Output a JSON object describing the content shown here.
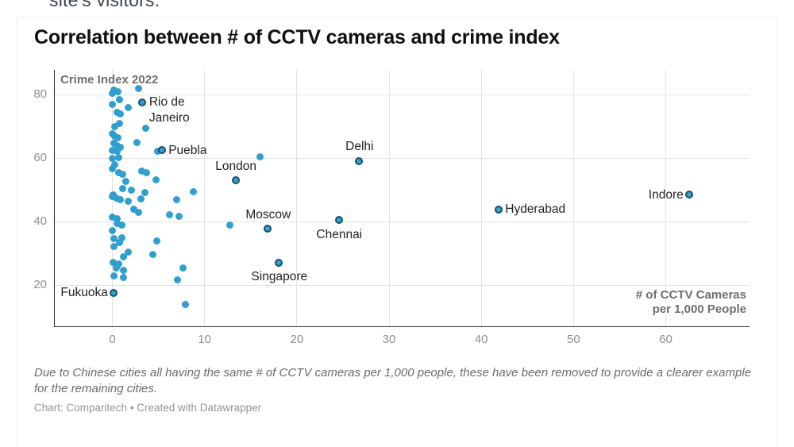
{
  "page": {
    "top_partial_text": "site's visitors."
  },
  "chart": {
    "title": "Correlation between # of CCTV cameras and crime index",
    "y_axis_title": "Crime Index 2022",
    "x_axis_title_line1": "# of CCTV Cameras",
    "x_axis_title_line2": "per 1,000 People",
    "footnote": "Due to Chinese cities all having the same # of CCTV cameras per 1,000 people, these have been removed to provide a clearer example for the remaining cities.",
    "credit": "Chart: Comparitech • Created with Datawrapper"
  },
  "chart_data": {
    "type": "scatter",
    "title": "Correlation between # of CCTV cameras and crime index",
    "xlabel": "# of CCTV Cameras per 1,000 People",
    "ylabel": "Crime Index 2022",
    "xlim": [
      -6,
      69
    ],
    "ylim": [
      7,
      88
    ],
    "x_ticks": [
      0,
      10,
      20,
      30,
      40,
      50,
      60
    ],
    "y_ticks": [
      20,
      40,
      60,
      80
    ],
    "grid": true,
    "colors": {
      "dot_fill": "#2f9fd0",
      "labeled_dot_fill": "#35a2cf",
      "labeled_dot_stroke": "#14506a",
      "gridline": "#e2e2e2",
      "axis_line": "#2e2e2e",
      "tick_label": "#8e8e8e",
      "axis_title": "#6e6e6e",
      "city_label": "#222222"
    },
    "labeled_points": [
      {
        "name": "Rio de Janeiro",
        "label": "Rio de\nJaneiro",
        "x": 3.3,
        "y": 77.5,
        "pos": "right"
      },
      {
        "name": "Puebla",
        "label": "Puebla",
        "x": 5.4,
        "y": 62.3,
        "pos": "right"
      },
      {
        "name": "London",
        "label": "London",
        "x": 13.4,
        "y": 52.8,
        "pos": "above"
      },
      {
        "name": "Delhi",
        "label": "Delhi",
        "x": 26.8,
        "y": 58.9,
        "pos": "above"
      },
      {
        "name": "Moscow",
        "label": "Moscow",
        "x": 16.9,
        "y": 37.6,
        "pos": "above"
      },
      {
        "name": "Chennai",
        "label": "Chennai",
        "x": 24.6,
        "y": 40.3,
        "pos": "below"
      },
      {
        "name": "Singapore",
        "label": "Singapore",
        "x": 18.1,
        "y": 27.0,
        "pos": "below"
      },
      {
        "name": "Hyderabad",
        "label": "Hyderabad",
        "x": 41.9,
        "y": 43.7,
        "pos": "right"
      },
      {
        "name": "Indore",
        "label": "Indore",
        "x": 62.6,
        "y": 48.3,
        "pos": "left"
      },
      {
        "name": "Fukuoka",
        "label": "Fukuoka",
        "x": 0.2,
        "y": 17.4,
        "pos": "left"
      }
    ],
    "unlabeled_points": [
      [
        0.2,
        81.5
      ],
      [
        2.8,
        82
      ],
      [
        0,
        80.3
      ],
      [
        0.6,
        80.8
      ],
      [
        0.8,
        78.3
      ],
      [
        0,
        77
      ],
      [
        1.7,
        76
      ],
      [
        0.5,
        74.3
      ],
      [
        0.9,
        73.9
      ],
      [
        0.8,
        70.8
      ],
      [
        0.3,
        69.9
      ],
      [
        3.6,
        69.5
      ],
      [
        0,
        67.7
      ],
      [
        0.3,
        66.8
      ],
      [
        0.6,
        66.3
      ],
      [
        2.7,
        64.9
      ],
      [
        0.2,
        64.6
      ],
      [
        0.5,
        63.8
      ],
      [
        0.9,
        63.3
      ],
      [
        0,
        62.4
      ],
      [
        0.5,
        62.1
      ],
      [
        4.9,
        62.1
      ],
      [
        0,
        59.9
      ],
      [
        0.7,
        60.2
      ],
      [
        16,
        60.4
      ],
      [
        0.3,
        57.9
      ],
      [
        0,
        56.6
      ],
      [
        0.7,
        55.4
      ],
      [
        1.1,
        54.9
      ],
      [
        3.2,
        56
      ],
      [
        3.7,
        55.4
      ],
      [
        1.5,
        52.7
      ],
      [
        4.7,
        53.1
      ],
      [
        3.5,
        49.2
      ],
      [
        0.1,
        48.5
      ],
      [
        1.1,
        50.4
      ],
      [
        2.1,
        49.8
      ],
      [
        8.8,
        49.3
      ],
      [
        0,
        47.9
      ],
      [
        0.4,
        47.4
      ],
      [
        0.9,
        46.8
      ],
      [
        1.7,
        46.3
      ],
      [
        3.1,
        47.1
      ],
      [
        7,
        46.8
      ],
      [
        2.3,
        43.8
      ],
      [
        2.8,
        42.9
      ],
      [
        0,
        41.3
      ],
      [
        0.5,
        40.8
      ],
      [
        6.2,
        42.1
      ],
      [
        7.2,
        41.6
      ],
      [
        0.5,
        39.3
      ],
      [
        1,
        38.8
      ],
      [
        0,
        37.1
      ],
      [
        12.7,
        39
      ],
      [
        0.2,
        34.6
      ],
      [
        1,
        34.9
      ],
      [
        0.8,
        33.3
      ],
      [
        0.2,
        32.1
      ],
      [
        4.8,
        33.8
      ],
      [
        1.7,
        30.4
      ],
      [
        1.2,
        28.8
      ],
      [
        4.4,
        29.6
      ],
      [
        0.1,
        27.1
      ],
      [
        0.7,
        26.6
      ],
      [
        0.4,
        25.4
      ],
      [
        1.2,
        24.6
      ],
      [
        7.7,
        25.4
      ],
      [
        0.2,
        22.9
      ],
      [
        1.2,
        22.4
      ],
      [
        7.1,
        21.6
      ],
      [
        7.9,
        13.9
      ]
    ]
  }
}
